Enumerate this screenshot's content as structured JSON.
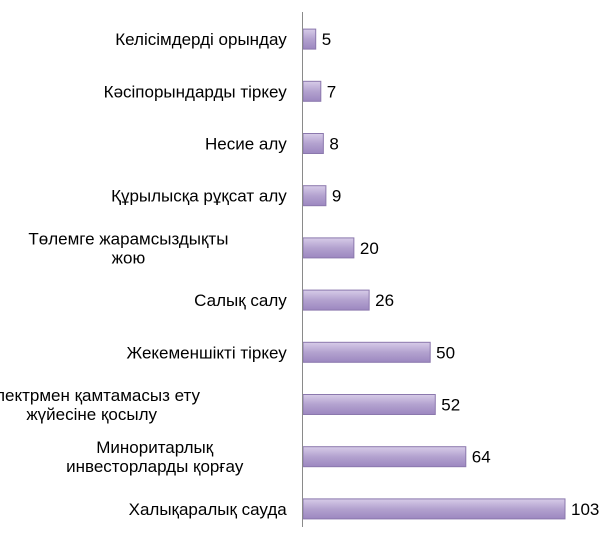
{
  "chart_data": {
    "type": "bar",
    "orientation": "horizontal",
    "categories": [
      [
        "Келісімдерді орындау"
      ],
      [
        "Кәсіпорындарды тіркеу"
      ],
      [
        "Несие алу"
      ],
      [
        "Құрылысқа рұқсат алу"
      ],
      [
        "Төлемге жарамсыздықты",
        "жою"
      ],
      [
        "Салық салу"
      ],
      [
        "Жекеменшікті тіркеу"
      ],
      [
        "Электрмен қамтамасыз ету",
        "жүйесіне қосылу"
      ],
      [
        "Миноритарлық",
        "инвесторларды қорғау"
      ],
      [
        "Халықаралық сауда"
      ]
    ],
    "values": [
      5,
      7,
      8,
      9,
      20,
      26,
      50,
      52,
      64,
      103
    ],
    "data_labels": [
      "5",
      "7",
      "8",
      "9",
      "20",
      "26",
      "50",
      "52",
      "64",
      "103"
    ],
    "title": "",
    "xlabel": "",
    "ylabel": "",
    "xlim": [
      103,
      0
    ],
    "axis_side": "left",
    "grid": false,
    "legend": "none",
    "colors": {
      "bar_top": "#d7cce8",
      "bar_mid": "#b3a2cf",
      "bar_bottom": "#9c87c0",
      "bar_stroke": "#8b78ad",
      "axis": "#8a8a8a"
    }
  }
}
